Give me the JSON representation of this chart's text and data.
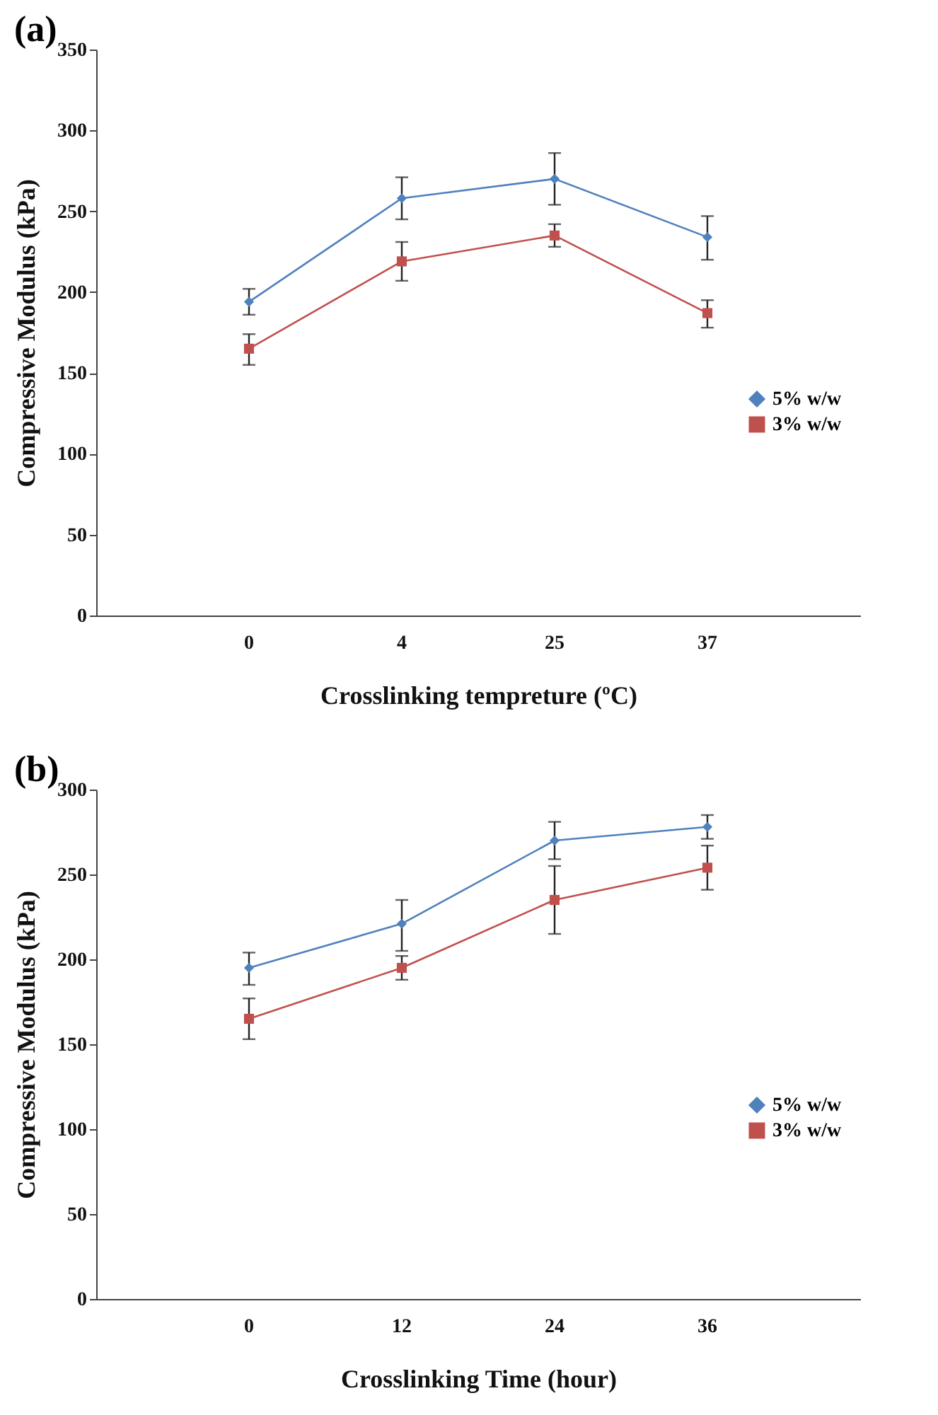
{
  "chart_data": [
    {
      "type": "line",
      "title": "(a)",
      "xlabel": "Crosslinking tempreture (ºC)",
      "ylabel": "Compressive Modulus (kPa)",
      "categories": [
        "0",
        "4",
        "25",
        "37"
      ],
      "ylim": [
        0,
        350
      ],
      "yticks": [
        0,
        50,
        100,
        150,
        200,
        250,
        300,
        350
      ],
      "grid": false,
      "legend": "right",
      "line_style": "solid",
      "series": [
        {
          "name": "5% w/w",
          "color": "#4f81bd",
          "marker": "diamond",
          "values": [
            194,
            258,
            270,
            234
          ],
          "errors": [
            [
              186,
              202
            ],
            [
              245,
              271
            ],
            [
              254,
              286
            ],
            [
              220,
              247
            ]
          ]
        },
        {
          "name": "3% w/w",
          "color": "#c0504d",
          "marker": "square",
          "values": [
            165,
            219,
            235,
            187
          ],
          "errors": [
            [
              155,
              174
            ],
            [
              207,
              231
            ],
            [
              228,
              242
            ],
            [
              178,
              195
            ]
          ]
        }
      ]
    },
    {
      "type": "line",
      "title": "(b)",
      "xlabel": "Crosslinking Time (hour)",
      "ylabel": "Compressive Modulus (kPa)",
      "categories": [
        "0",
        "12",
        "24",
        "36"
      ],
      "ylim": [
        0,
        300
      ],
      "yticks": [
        0,
        50,
        100,
        150,
        200,
        250,
        300
      ],
      "grid": false,
      "legend": "right",
      "line_style": "solid",
      "series": [
        {
          "name": "5% w/w",
          "color": "#4f81bd",
          "marker": "diamond",
          "values": [
            195,
            221,
            270,
            278
          ],
          "errors": [
            [
              185,
              204
            ],
            [
              205,
              235
            ],
            [
              259,
              281
            ],
            [
              271,
              285
            ]
          ]
        },
        {
          "name": "3% w/w",
          "color": "#c0504d",
          "marker": "square",
          "values": [
            165,
            195,
            235,
            254
          ],
          "errors": [
            [
              153,
              177
            ],
            [
              188,
              202
            ],
            [
              215,
              255
            ],
            [
              241,
              267
            ]
          ]
        }
      ]
    }
  ]
}
